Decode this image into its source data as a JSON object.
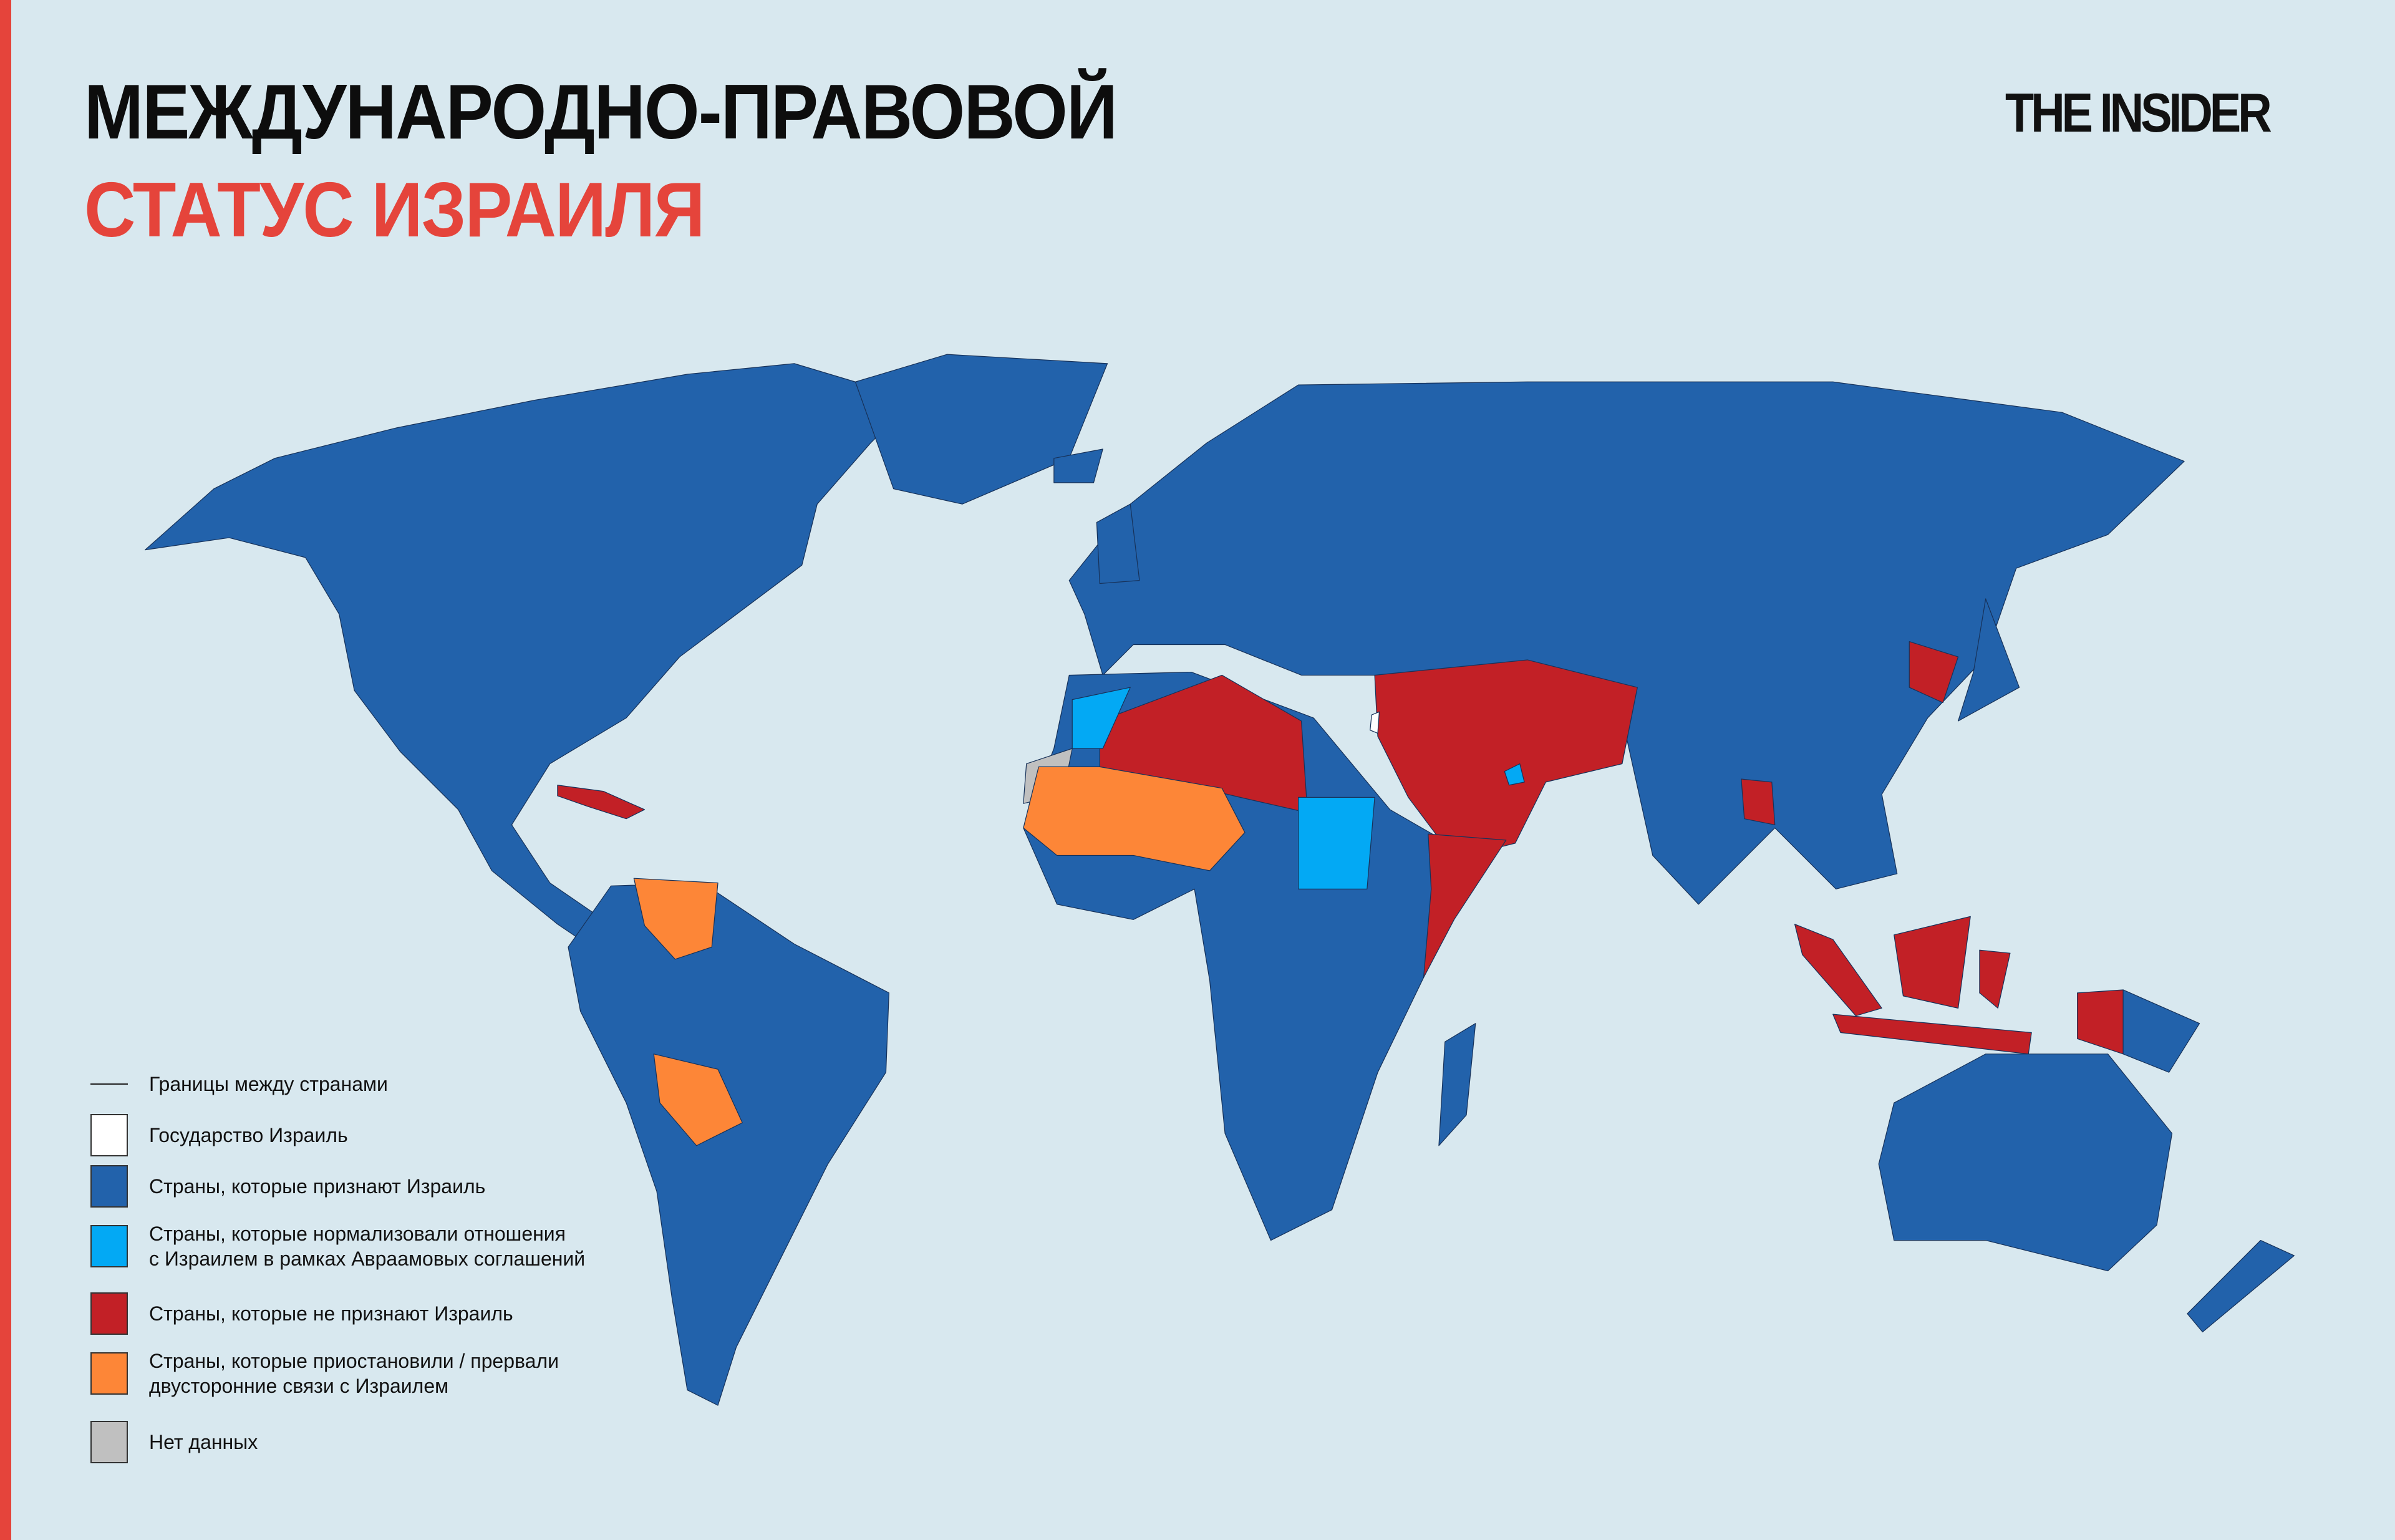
{
  "header": {
    "title": "МЕЖДУНАРОДНО-ПРАВОВОЙ",
    "subtitle": "СТАТУС ИЗРАИЛЯ",
    "logo": "THE INSIDER"
  },
  "colors": {
    "ocean": "#d8e8ef",
    "accent": "#e5443b",
    "recognize": "#2262ab",
    "abraham": "#03a9f4",
    "not_recognize": "#c22026",
    "suspended": "#fd8637",
    "no_data": "#c0c0c0",
    "israel": "#ffffff"
  },
  "legend": [
    {
      "key": "border",
      "label": "Границы между странами"
    },
    {
      "key": "israel",
      "label": "Государство Израиль",
      "color": "#ffffff"
    },
    {
      "key": "recognize",
      "label": "Страны, которые признают Израиль",
      "color": "#2262ab"
    },
    {
      "key": "abraham",
      "label_line1": "Страны, которые нормализовали отношения",
      "label_line2": "с Израилем в рамках Авраамовых соглашений",
      "color": "#03a9f4"
    },
    {
      "key": "not_recognize",
      "label": "Страны, которые не признают Израиль",
      "color": "#c22026"
    },
    {
      "key": "suspended",
      "label_line1": "Страны, которые приостановили / прервали",
      "label_line2": "двусторонние связи с Израилем",
      "color": "#fd8637"
    },
    {
      "key": "no_data",
      "label": "Нет данных",
      "color": "#c0c0c0"
    }
  ]
}
